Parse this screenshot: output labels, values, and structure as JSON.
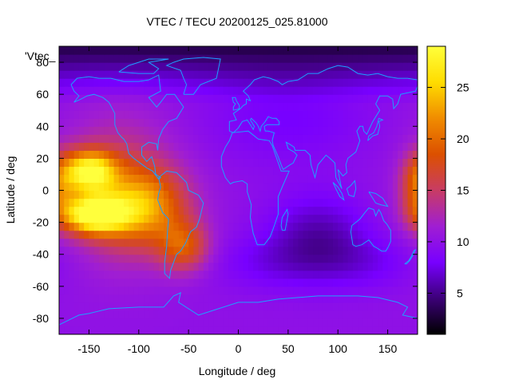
{
  "chart_data": {
    "type": "heatmap",
    "title": "VTEC / TECU 20200125_025.81000",
    "xlabel": "Longitude / deg",
    "ylabel": "Latitude / deg",
    "key_label": "'Vtec_",
    "xlim": [
      -180,
      180
    ],
    "ylim": [
      -90,
      90
    ],
    "x_ticks": [
      -150,
      -100,
      -50,
      0,
      50,
      100,
      150
    ],
    "y_ticks": [
      -80,
      -60,
      -40,
      -20,
      0,
      20,
      40,
      60,
      80
    ],
    "colorbar": {
      "range": [
        1,
        29
      ],
      "ticks": [
        5,
        10,
        15,
        20,
        25
      ]
    },
    "colormap": [
      "#000000",
      "#3c0078",
      "#7800ff",
      "#a01ed2",
      "#c83c64",
      "#dc5000",
      "#f08c00",
      "#ffdc00",
      "#ffff3c"
    ],
    "coastline_color": "#1ea0ff",
    "grid": false
  }
}
